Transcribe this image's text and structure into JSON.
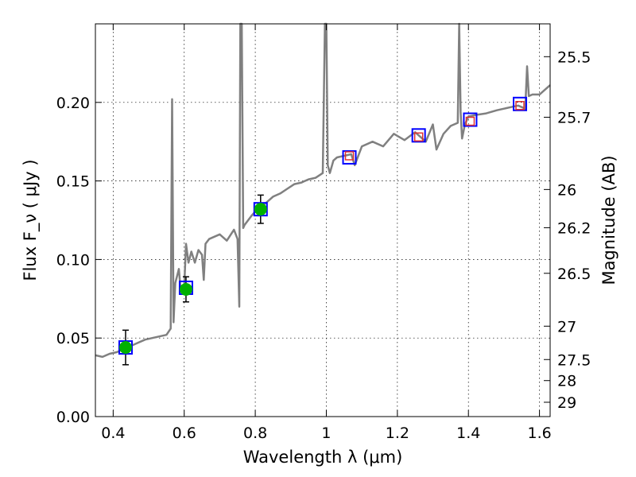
{
  "chart_data": {
    "type": "line",
    "xlabel": "Wavelength  λ (μm)",
    "ylabel": "Flux  F_ν  ( μJy )",
    "ylabel_right": "Magnitude (AB)",
    "xlim": [
      0.35,
      1.63
    ],
    "ylim": [
      0.0,
      0.25
    ],
    "grid": true,
    "x_ticks": [
      {
        "value": 0.4,
        "label": "0.4"
      },
      {
        "value": 0.6,
        "label": "0.6"
      },
      {
        "value": 0.8,
        "label": "0.8"
      },
      {
        "value": 1.0,
        "label": "1"
      },
      {
        "value": 1.2,
        "label": "1.2"
      },
      {
        "value": 1.4,
        "label": "1.4"
      },
      {
        "value": 1.6,
        "label": "1.6"
      }
    ],
    "y_ticks": [
      {
        "value": 0.0,
        "label": "0.00"
      },
      {
        "value": 0.05,
        "label": "0.05"
      },
      {
        "value": 0.1,
        "label": "0.10"
      },
      {
        "value": 0.15,
        "label": "0.15"
      },
      {
        "value": 0.2,
        "label": "0.20"
      }
    ],
    "mag_ticks": [
      {
        "value": 25.5,
        "label": "25.5"
      },
      {
        "value": 25.7,
        "label": "25.7"
      },
      {
        "value": 26.0,
        "label": "26"
      },
      {
        "value": 26.2,
        "label": "26.2"
      },
      {
        "value": 26.5,
        "label": "26.5"
      },
      {
        "value": 27.0,
        "label": "27"
      },
      {
        "value": 27.5,
        "label": "27.5"
      },
      {
        "value": 28.0,
        "label": "28"
      },
      {
        "value": 29.0,
        "label": "29"
      }
    ],
    "sed_model": {
      "color": "#808080",
      "x": [
        0.35,
        0.37,
        0.39,
        0.41,
        0.43,
        0.45,
        0.47,
        0.49,
        0.51,
        0.53,
        0.55,
        0.562,
        0.566,
        0.57,
        0.575,
        0.585,
        0.59,
        0.6,
        0.605,
        0.612,
        0.62,
        0.63,
        0.64,
        0.65,
        0.655,
        0.66,
        0.67,
        0.68,
        0.7,
        0.72,
        0.74,
        0.75,
        0.755,
        0.758,
        0.762,
        0.766,
        0.77,
        0.79,
        0.81,
        0.83,
        0.85,
        0.87,
        0.89,
        0.91,
        0.93,
        0.95,
        0.97,
        0.99,
        0.996,
        1.0,
        1.004,
        1.01,
        1.02,
        1.03,
        1.05,
        1.07,
        1.08,
        1.1,
        1.13,
        1.16,
        1.19,
        1.22,
        1.25,
        1.28,
        1.3,
        1.31,
        1.33,
        1.35,
        1.37,
        1.374,
        1.378,
        1.382,
        1.39,
        1.4,
        1.42,
        1.45,
        1.48,
        1.5,
        1.52,
        1.54,
        1.56,
        1.565,
        1.57,
        1.58,
        1.6,
        1.63
      ],
      "y": [
        0.039,
        0.038,
        0.04,
        0.041,
        0.043,
        0.045,
        0.047,
        0.049,
        0.05,
        0.051,
        0.052,
        0.056,
        0.202,
        0.06,
        0.085,
        0.094,
        0.08,
        0.082,
        0.11,
        0.098,
        0.105,
        0.098,
        0.106,
        0.103,
        0.087,
        0.11,
        0.113,
        0.114,
        0.116,
        0.112,
        0.119,
        0.113,
        0.07,
        0.25,
        0.25,
        0.12,
        0.122,
        0.128,
        0.133,
        0.136,
        0.14,
        0.142,
        0.145,
        0.148,
        0.149,
        0.151,
        0.152,
        0.155,
        0.25,
        0.25,
        0.16,
        0.155,
        0.163,
        0.165,
        0.166,
        0.167,
        0.16,
        0.172,
        0.175,
        0.172,
        0.18,
        0.176,
        0.181,
        0.175,
        0.186,
        0.17,
        0.18,
        0.185,
        0.187,
        0.25,
        0.194,
        0.177,
        0.186,
        0.191,
        0.192,
        0.193,
        0.195,
        0.196,
        0.197,
        0.198,
        0.196,
        0.223,
        0.204,
        0.205,
        0.205,
        0.211
      ]
    },
    "observed": {
      "x": [
        0.435,
        0.605,
        0.815
      ],
      "y": [
        0.044,
        0.081,
        0.132
      ],
      "yerr": [
        0.011,
        0.008,
        0.009
      ],
      "color": "#00b000"
    },
    "model_bandpass": {
      "x": [
        0.435,
        0.605,
        0.815,
        1.065,
        1.26,
        1.405,
        1.545
      ],
      "y": [
        0.044,
        0.082,
        0.132,
        0.165,
        0.179,
        0.189,
        0.199
      ],
      "color": "#0000ff"
    },
    "predicted": {
      "x": [
        1.065,
        1.26,
        1.405,
        1.545
      ],
      "y": [
        0.166,
        0.178,
        0.188,
        0.198
      ],
      "color": "#e03030"
    }
  }
}
